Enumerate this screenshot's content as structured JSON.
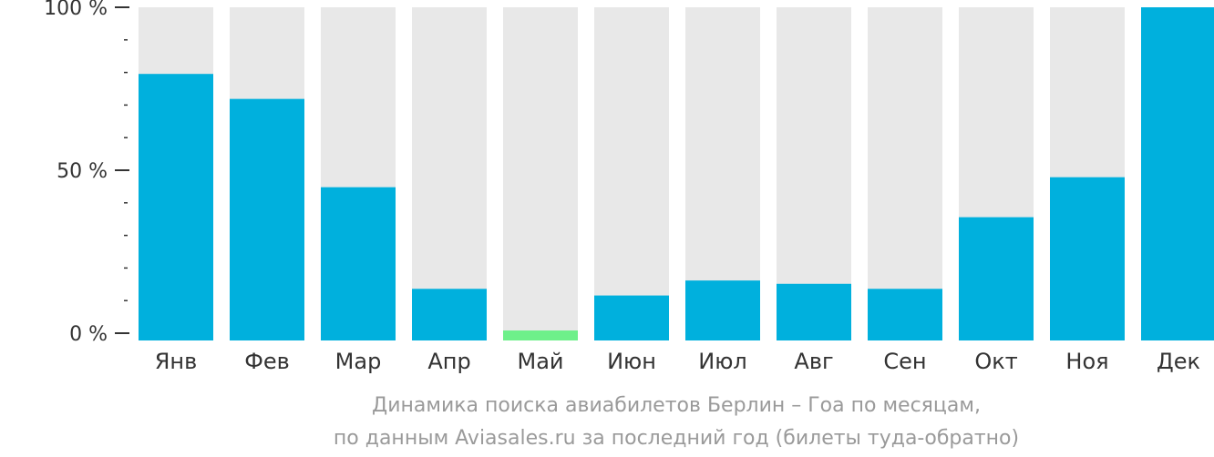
{
  "chart_data": {
    "type": "bar",
    "categories": [
      "Янв",
      "Фев",
      "Мар",
      "Апр",
      "Май",
      "Июн",
      "Июл",
      "Авг",
      "Сен",
      "Окт",
      "Ноя",
      "Дек"
    ],
    "values": [
      80,
      72.5,
      46,
      15.5,
      3,
      13.5,
      18,
      17,
      15.5,
      37,
      49,
      100
    ],
    "ylim": [
      0,
      100
    ],
    "yticks": [
      {
        "value": 0,
        "label": "0 %"
      },
      {
        "value": 50,
        "label": "50 %"
      },
      {
        "value": 100,
        "label": "100 %"
      }
    ],
    "minor_tick_step": 10,
    "caption": [
      "Динамика поиска авиабилетов Берлин – Гоа по месяцам,",
      "по данным Aviasales.ru за последний год (билеты туда-обратно)"
    ],
    "grid": false,
    "legend": "none",
    "colors": {
      "bar": "#00b0dd",
      "bar_min": "#6ef08a",
      "background_bar": "#e8e8e8",
      "axis": "#333333",
      "caption": "#9a9a9a"
    },
    "highlight_index": 4
  }
}
